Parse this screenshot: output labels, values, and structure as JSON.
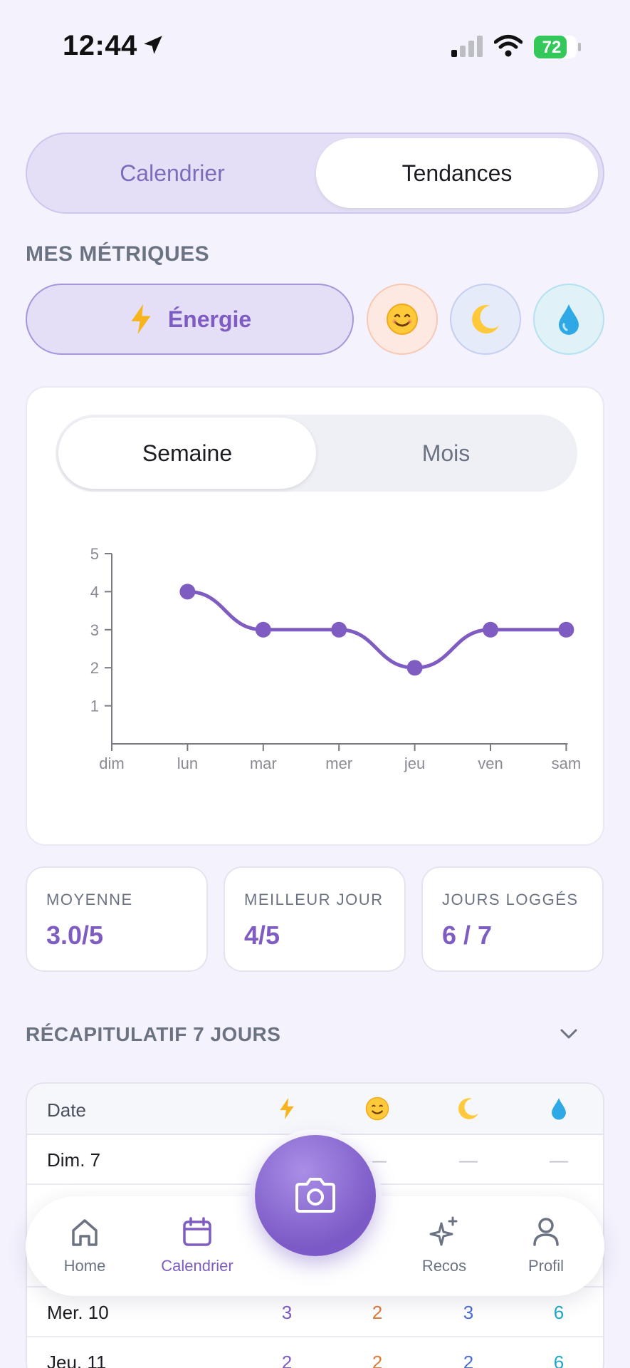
{
  "status_bar": {
    "time": "12:44",
    "battery": "72"
  },
  "top_segment": {
    "calendar_label": "Calendrier",
    "trends_label": "Tendances",
    "selected": "Tendances"
  },
  "metrics": {
    "title": "MES MÉTRIQUES",
    "selected_label": "Énergie",
    "selected_icon": "lightning-icon",
    "others": [
      "mood-smile-icon",
      "moon-icon",
      "water-drop-icon"
    ]
  },
  "range_toggle": {
    "week_label": "Semaine",
    "month_label": "Mois",
    "selected": "Semaine"
  },
  "chart_data": {
    "type": "line",
    "categories": [
      "dim",
      "lun",
      "mar",
      "mer",
      "jeu",
      "ven",
      "sam"
    ],
    "series": [
      {
        "values": [
          null,
          4,
          3,
          3,
          2,
          3,
          3
        ]
      }
    ],
    "yticks": [
      1,
      2,
      3,
      4,
      5
    ],
    "ylim": [
      0,
      5
    ],
    "color": "#7e5cc2",
    "grid": false
  },
  "stats": [
    {
      "label": "MOYENNE",
      "value": "3.0/5"
    },
    {
      "label": "MEILLEUR JOUR",
      "value": "4/5"
    },
    {
      "label": "JOURS LOGGÉS",
      "value": "6 / 7"
    }
  ],
  "recap": {
    "title": "RÉCAPITULATIF 7 JOURS",
    "header_date": "Date",
    "rows": [
      {
        "date": "Dim. 7",
        "mood": "—",
        "sleep": "—",
        "water": "—"
      },
      {
        "date": "Mer. 10",
        "energy": "3",
        "mood": "2",
        "sleep": "3",
        "water": "6"
      },
      {
        "date": "Jeu. 11",
        "energy": "2",
        "mood": "2",
        "sleep": "2",
        "water": "6"
      }
    ]
  },
  "tabbar": {
    "home": "Home",
    "calendar": "Calendrier",
    "recos": "Recos",
    "profile": "Profil",
    "active": "Calendrier"
  },
  "colors": {
    "accent": "#7e5cc2",
    "background": "#f4f2fc"
  }
}
